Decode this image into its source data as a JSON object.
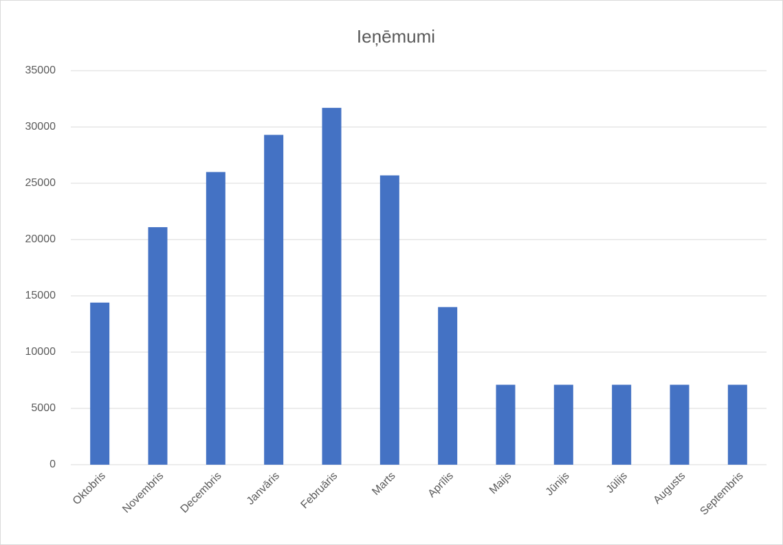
{
  "chart_data": {
    "type": "bar",
    "title": "Ieņēmumi",
    "categories": [
      "Oktobris",
      "Novembris",
      "Decembris",
      "Janvāris",
      "Februāris",
      "Marts",
      "Aprīlis",
      "Maijs",
      "Jūnijs",
      "Jūlijs",
      "Augusts",
      "Septembris"
    ],
    "values": [
      14400,
      21100,
      26000,
      29300,
      31700,
      25700,
      14000,
      7100,
      7100,
      7100,
      7100,
      7100
    ],
    "color": "#4472c4",
    "ylim": [
      0,
      35000
    ],
    "yticks": [
      0,
      5000,
      10000,
      15000,
      20000,
      25000,
      30000,
      35000
    ],
    "grid": true
  }
}
